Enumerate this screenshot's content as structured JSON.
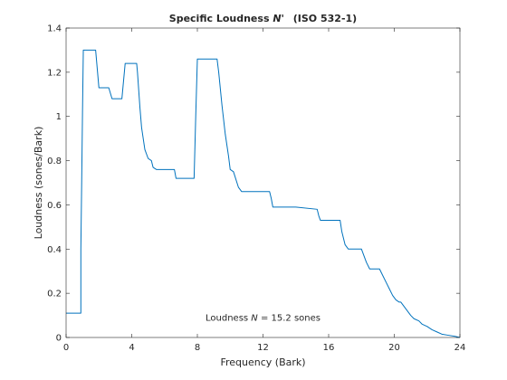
{
  "chart_data": {
    "type": "line",
    "title_prefix": "Specific Loudness",
    "title_symbol": "N'",
    "title_suffix": "(ISO 532-1)",
    "xlabel": "Frequency (Bark)",
    "ylabel": "Loudness (sones/Bark)",
    "xlim": [
      0,
      24
    ],
    "ylim": [
      0,
      1.4
    ],
    "xticks": [
      0,
      4,
      8,
      12,
      16,
      20,
      24
    ],
    "xtick_labels": [
      "0",
      "4",
      "8",
      "12",
      "16",
      "20",
      "24"
    ],
    "yticks": [
      0,
      0.2,
      0.4,
      0.6,
      0.8,
      1,
      1.2,
      1.4
    ],
    "ytick_labels": [
      "0",
      "0.2",
      "0.4",
      "0.6",
      "0.8",
      "1",
      "1.2",
      "1.4"
    ],
    "grid": false,
    "box": true,
    "line_color": "#0072BD",
    "annotation": {
      "prefix": "Loudness",
      "symbol": "N",
      "suffix": "= 15.2 sones",
      "x": 12,
      "y": 0.075
    },
    "series": [
      {
        "x": [
          0,
          0.9,
          0.9,
          0.95,
          1.0,
          1.05,
          1.8,
          2.0,
          2.6,
          2.8,
          3.4,
          3.6,
          4.3,
          4.35,
          4.5,
          4.6,
          4.8,
          5.0,
          5.2,
          5.3,
          5.5,
          6.6,
          6.7,
          7.8,
          7.9,
          8.0,
          8.1,
          9.2,
          9.3,
          9.5,
          9.7,
          9.9,
          10.0,
          10.2,
          10.5,
          10.7,
          11.0,
          12.4,
          12.5,
          12.6,
          13.0,
          14.0,
          15.3,
          15.4,
          15.5,
          16.7,
          16.8,
          17.0,
          17.2,
          18.0,
          18.3,
          18.5,
          19.1,
          19.3,
          19.5,
          19.7,
          19.9,
          20.1,
          20.3,
          20.4,
          20.6,
          20.8,
          21.0,
          21.2,
          21.5,
          21.7,
          22.0,
          22.3,
          22.6,
          22.9,
          23.3,
          23.7,
          24.0
        ],
        "y": [
          0.11,
          0.11,
          0.4,
          0.7,
          1.02,
          1.3,
          1.3,
          1.13,
          1.13,
          1.08,
          1.08,
          1.24,
          1.24,
          1.2,
          1.04,
          0.95,
          0.85,
          0.81,
          0.8,
          0.77,
          0.76,
          0.76,
          0.72,
          0.72,
          1.0,
          1.26,
          1.26,
          1.26,
          1.2,
          1.05,
          0.92,
          0.82,
          0.76,
          0.75,
          0.68,
          0.66,
          0.66,
          0.66,
          0.63,
          0.59,
          0.59,
          0.59,
          0.58,
          0.55,
          0.53,
          0.53,
          0.48,
          0.42,
          0.4,
          0.4,
          0.34,
          0.31,
          0.31,
          0.28,
          0.25,
          0.22,
          0.19,
          0.17,
          0.16,
          0.16,
          0.14,
          0.12,
          0.1,
          0.085,
          0.075,
          0.06,
          0.05,
          0.035,
          0.025,
          0.015,
          0.01,
          0.005,
          0.0
        ]
      }
    ]
  }
}
